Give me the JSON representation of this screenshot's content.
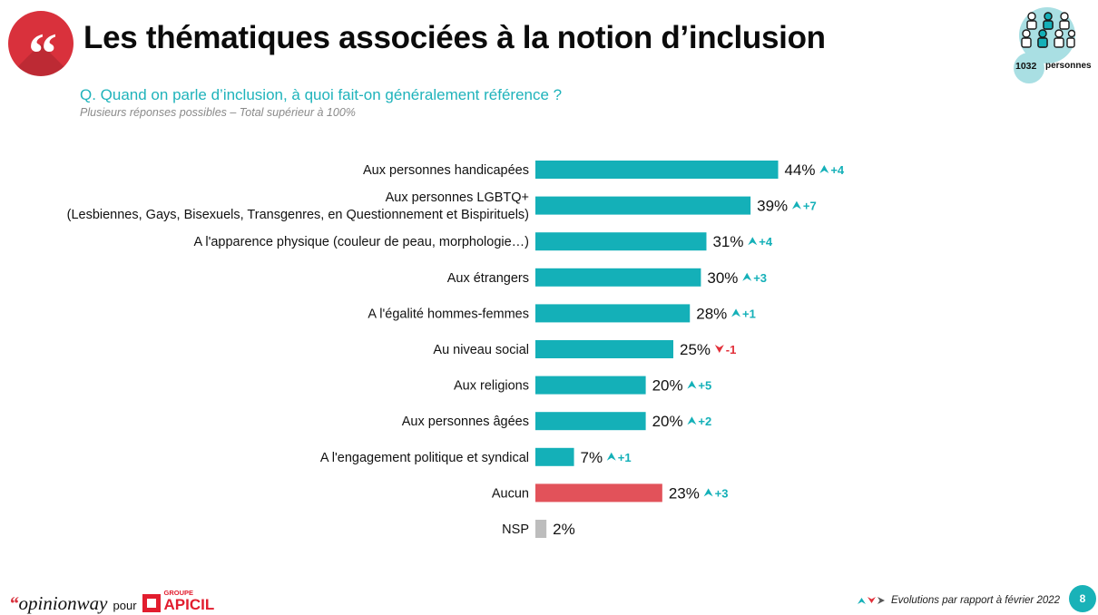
{
  "title": "Les thématiques associées à la notion d’inclusion",
  "question": "Q. Quand on parle d’inclusion, à quoi fait-on généralement référence ?",
  "note": "Plusieurs réponses possibles – Total supérieur à 100%",
  "sample": {
    "count": "1032",
    "unit": "personnes"
  },
  "colors": {
    "teal": "#14b0b8",
    "red": "#e2525a",
    "grey": "#bdbdbd",
    "title_red": "#d9313c"
  },
  "chart_data": {
    "type": "bar",
    "orientation": "horizontal",
    "categories": [
      [
        "Aux personnes handicapées"
      ],
      [
        "Aux personnes LGBTQ+",
        "(Lesbiennes, Gays, Bisexuels, Transgenres, en Questionnement et Bispirituels)"
      ],
      [
        "A l'apparence physique (couleur de peau, morphologie…)"
      ],
      [
        "Aux étrangers"
      ],
      [
        "A l'égalité hommes-femmes"
      ],
      [
        "Au niveau social"
      ],
      [
        "Aux religions"
      ],
      [
        "Aux personnes âgées"
      ],
      [
        "A l'engagement politique et syndical"
      ],
      [
        "Aucun"
      ],
      [
        "NSP"
      ]
    ],
    "values": [
      44,
      39,
      31,
      30,
      28,
      25,
      20,
      20,
      7,
      23,
      2
    ],
    "value_labels": [
      "44%",
      "39%",
      "31%",
      "30%",
      "28%",
      "25%",
      "20%",
      "20%",
      "7%",
      "23%",
      "2%"
    ],
    "bar_colors": [
      "teal",
      "teal",
      "teal",
      "teal",
      "teal",
      "teal",
      "teal",
      "teal",
      "teal",
      "red",
      "grey"
    ],
    "evolution": [
      "+4",
      "+7",
      "+4",
      "+3",
      "+1",
      "-1",
      "+5",
      "+2",
      "+1",
      "+3",
      null
    ],
    "evolution_direction": [
      "up",
      "up",
      "up",
      "up",
      "up",
      "down",
      "up",
      "up",
      "up",
      "up",
      null
    ],
    "unit": "%"
  },
  "footer": {
    "brand": "opinionway",
    "pour": "pour",
    "partner_group": "GROUPE",
    "partner_name": "APICIL",
    "legend": "Evolutions par rapport à février 2022",
    "page": "8"
  }
}
